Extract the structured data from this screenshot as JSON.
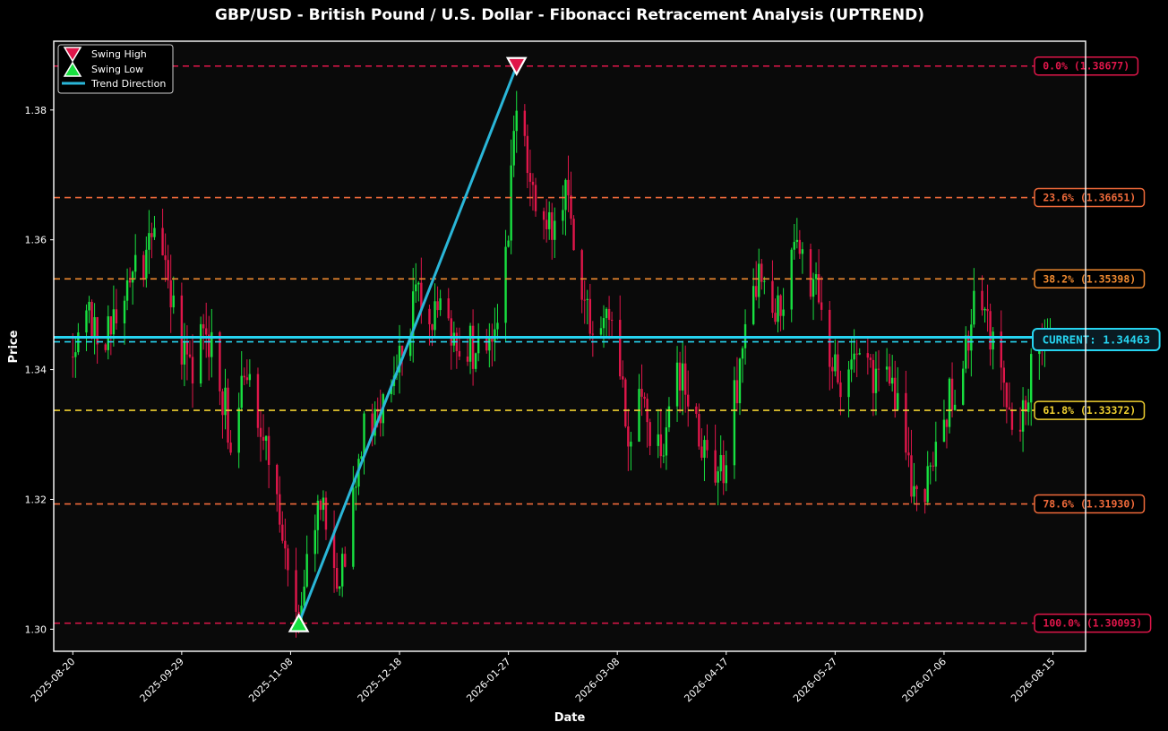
{
  "chart_data": {
    "type": "candlestick",
    "title": "GBP/USD - British Pound / U.S. Dollar - Fibonacci Retracement Analysis (UPTREND)",
    "xlabel": "Date",
    "ylabel": "Price",
    "xlim": [
      "2025-08-13",
      "2026-08-27"
    ],
    "ylim": [
      1.2966,
      1.3906
    ],
    "x_ticks": [
      "2025-08-20",
      "2025-09-29",
      "2025-11-08",
      "2025-12-18",
      "2026-01-27",
      "2026-03-08",
      "2026-04-17",
      "2026-05-27",
      "2026-07-06",
      "2026-08-15"
    ],
    "y_ticks": [
      "1.30",
      "1.32",
      "1.34",
      "1.36",
      "1.38"
    ],
    "grid": false,
    "legend": {
      "placement": "top-left",
      "entries": [
        "Swing High",
        "Swing Low",
        "Trend Direction"
      ]
    },
    "swing_high": {
      "date": "2026-01-30",
      "price": 1.38677
    },
    "swing_low": {
      "date": "2025-11-11",
      "price": 1.30093
    },
    "current": {
      "label": "CURRENT: 1.34463",
      "price": 1.34463
    },
    "fib_levels": [
      {
        "label": "0.0% (1.38677)",
        "price": 1.38677,
        "color": "#e0164a"
      },
      {
        "label": "23.6% (1.36651)",
        "price": 1.36651,
        "color": "#ef6a3a"
      },
      {
        "label": "38.2% (1.35398)",
        "price": 1.35398,
        "color": "#f08a30"
      },
      {
        "label": "61.8% (1.33372)",
        "price": 1.33372,
        "color": "#f0d030"
      },
      {
        "label": "78.6% (1.31930)",
        "price": 1.3193,
        "color": "#ef6a3a"
      },
      {
        "label": "100.0% (1.30093)",
        "price": 1.30093,
        "color": "#e0164a"
      }
    ],
    "price_path": [
      [
        "2025-08-20",
        1.342
      ],
      [
        "2025-08-26",
        1.349
      ],
      [
        "2025-09-02",
        1.345
      ],
      [
        "2025-09-09",
        1.353
      ],
      [
        "2025-09-15",
        1.357
      ],
      [
        "2025-09-20",
        1.365
      ],
      [
        "2025-09-24",
        1.354
      ],
      [
        "2025-09-29",
        1.344
      ],
      [
        "2025-10-03",
        1.34
      ],
      [
        "2025-10-08",
        1.347
      ],
      [
        "2025-10-13",
        1.338
      ],
      [
        "2025-10-17",
        1.33
      ],
      [
        "2025-10-22",
        1.342
      ],
      [
        "2025-10-26",
        1.336
      ],
      [
        "2025-10-30",
        1.33
      ],
      [
        "2025-11-03",
        1.318
      ],
      [
        "2025-11-07",
        1.308
      ],
      [
        "2025-11-11",
        1.302
      ],
      [
        "2025-11-15",
        1.314
      ],
      [
        "2025-11-20",
        1.318
      ],
      [
        "2025-11-24",
        1.306
      ],
      [
        "2025-11-29",
        1.314
      ],
      [
        "2025-12-04",
        1.33
      ],
      [
        "2025-12-09",
        1.333
      ],
      [
        "2025-12-14",
        1.336
      ],
      [
        "2025-12-19",
        1.344
      ],
      [
        "2025-12-24",
        1.351
      ],
      [
        "2025-12-29",
        1.346
      ],
      [
        "2026-01-03",
        1.352
      ],
      [
        "2026-01-08",
        1.342
      ],
      [
        "2026-01-13",
        1.344
      ],
      [
        "2026-01-18",
        1.34
      ],
      [
        "2026-01-23",
        1.347
      ],
      [
        "2026-01-27",
        1.362
      ],
      [
        "2026-01-30",
        1.382
      ],
      [
        "2026-02-03",
        1.372
      ],
      [
        "2026-02-08",
        1.364
      ],
      [
        "2026-02-13",
        1.36
      ],
      [
        "2026-02-17",
        1.367
      ],
      [
        "2026-02-21",
        1.356
      ],
      [
        "2026-02-26",
        1.346
      ],
      [
        "2026-03-03",
        1.35
      ],
      [
        "2026-03-08",
        1.342
      ],
      [
        "2026-03-12",
        1.33
      ],
      [
        "2026-03-16",
        1.338
      ],
      [
        "2026-03-20",
        1.33
      ],
      [
        "2026-03-25",
        1.325
      ],
      [
        "2026-03-30",
        1.34
      ],
      [
        "2026-04-03",
        1.335
      ],
      [
        "2026-04-08",
        1.328
      ],
      [
        "2026-04-13",
        1.322
      ],
      [
        "2026-04-17",
        1.326
      ],
      [
        "2026-04-21",
        1.338
      ],
      [
        "2026-04-26",
        1.352
      ],
      [
        "2026-04-30",
        1.354
      ],
      [
        "2026-05-05",
        1.348
      ],
      [
        "2026-05-09",
        1.352
      ],
      [
        "2026-05-13",
        1.36
      ],
      [
        "2026-05-17",
        1.356
      ],
      [
        "2026-05-21",
        1.35
      ],
      [
        "2026-05-25",
        1.342
      ],
      [
        "2026-05-29",
        1.336
      ],
      [
        "2026-06-02",
        1.344
      ],
      [
        "2026-06-07",
        1.342
      ],
      [
        "2026-06-12",
        1.338
      ],
      [
        "2026-06-17",
        1.34
      ],
      [
        "2026-06-21",
        1.328
      ],
      [
        "2026-06-25",
        1.32
      ],
      [
        "2026-06-30",
        1.323
      ],
      [
        "2026-07-05",
        1.332
      ],
      [
        "2026-07-10",
        1.338
      ],
      [
        "2026-07-14",
        1.342
      ],
      [
        "2026-07-18",
        1.351
      ],
      [
        "2026-07-23",
        1.346
      ],
      [
        "2026-07-28",
        1.338
      ],
      [
        "2026-08-02",
        1.331
      ],
      [
        "2026-08-06",
        1.338
      ],
      [
        "2026-08-10",
        1.345
      ],
      [
        "2026-08-15",
        1.3446
      ]
    ],
    "candle_colors": {
      "up": "#18e040",
      "down": "#e0164a"
    },
    "trend_color": "#2ab6d8",
    "current_color": "#26d4f0"
  }
}
